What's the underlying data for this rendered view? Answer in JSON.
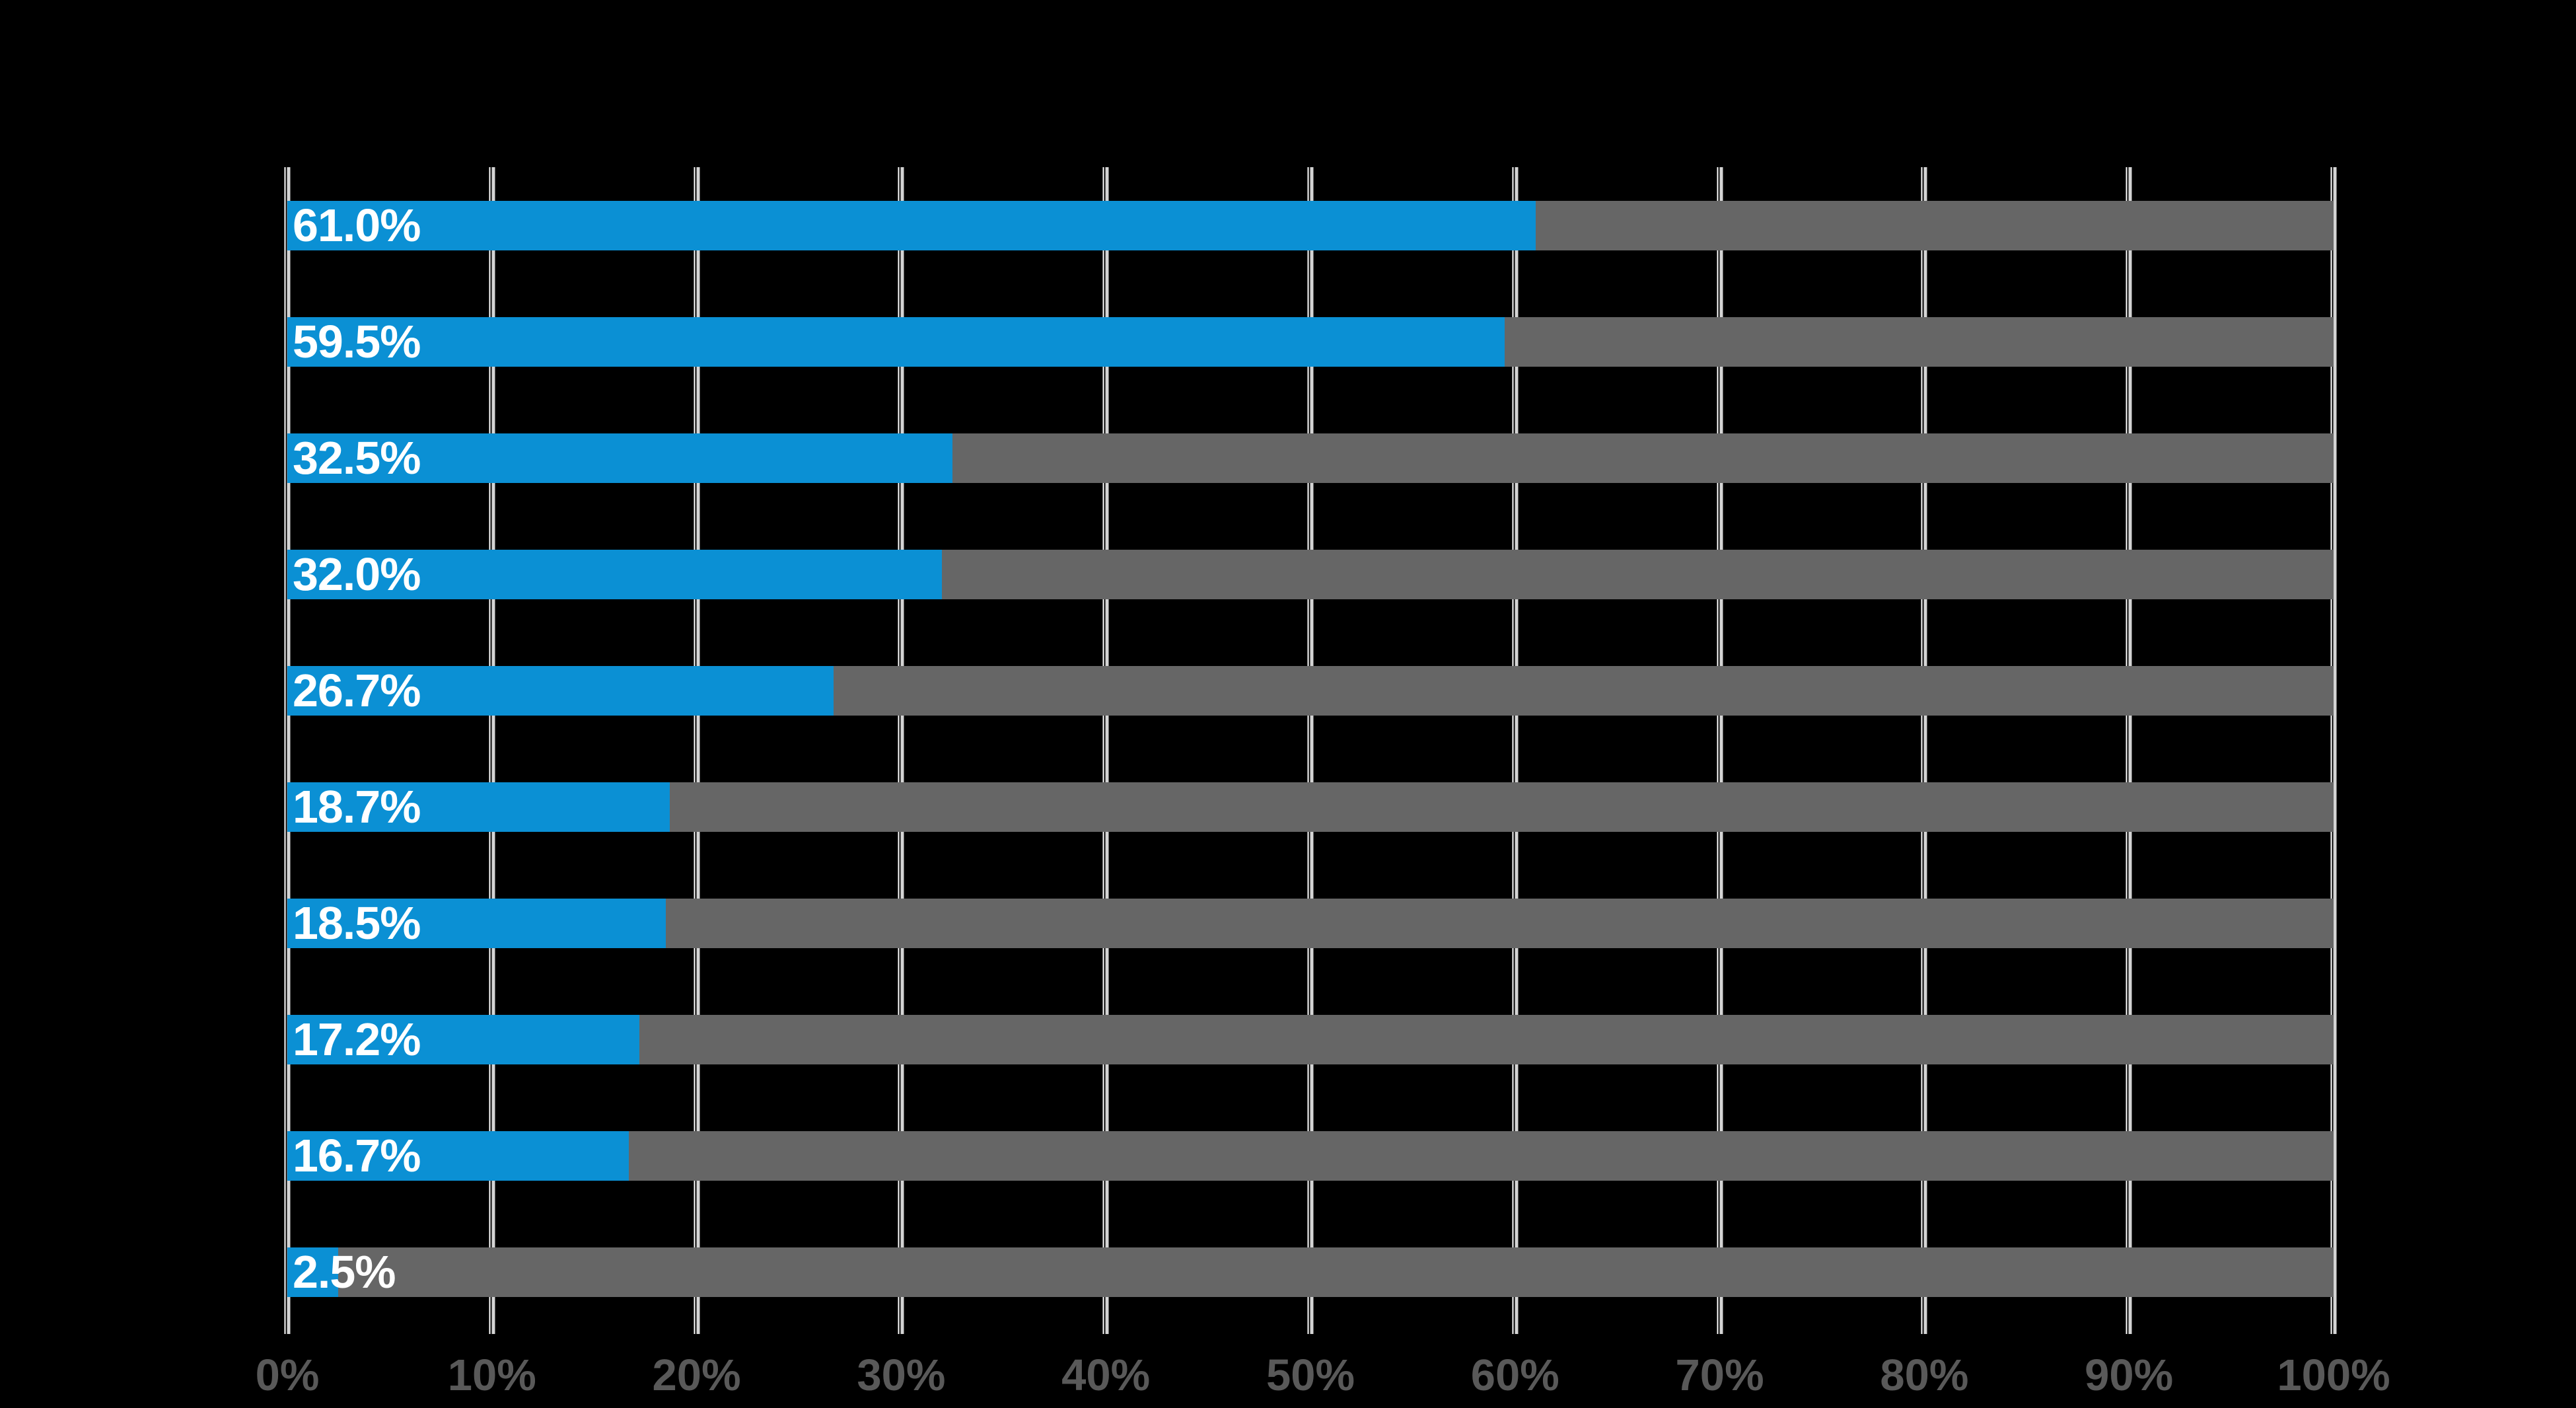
{
  "chart_data": {
    "type": "bar",
    "orientation": "horizontal",
    "values": [
      61.0,
      59.5,
      32.5,
      32.0,
      26.7,
      18.7,
      18.5,
      17.2,
      16.7,
      2.5
    ],
    "bar_labels": [
      "61.0%",
      "59.5%",
      "32.5%",
      "32.0%",
      "26.7%",
      "18.7%",
      "18.5%",
      "17.2%",
      "16.7%",
      "2.5%"
    ],
    "x_ticks": [
      "0%",
      "10%",
      "20%",
      "30%",
      "40%",
      "50%",
      "60%",
      "70%",
      "80%",
      "90%",
      "100%"
    ],
    "xlim": [
      0,
      100
    ],
    "grid": true,
    "track_full_scale": 100,
    "legend": "none",
    "value_label_position": "inside-left",
    "colors": {
      "background": "#000000",
      "bar_fill": "#0b90d4",
      "bar_track": "#666666",
      "value_label": "#ffffff",
      "tick_label": "#595959",
      "gridline_bright": "#ffffff",
      "gridline_soft": "#d4d4d4"
    }
  }
}
